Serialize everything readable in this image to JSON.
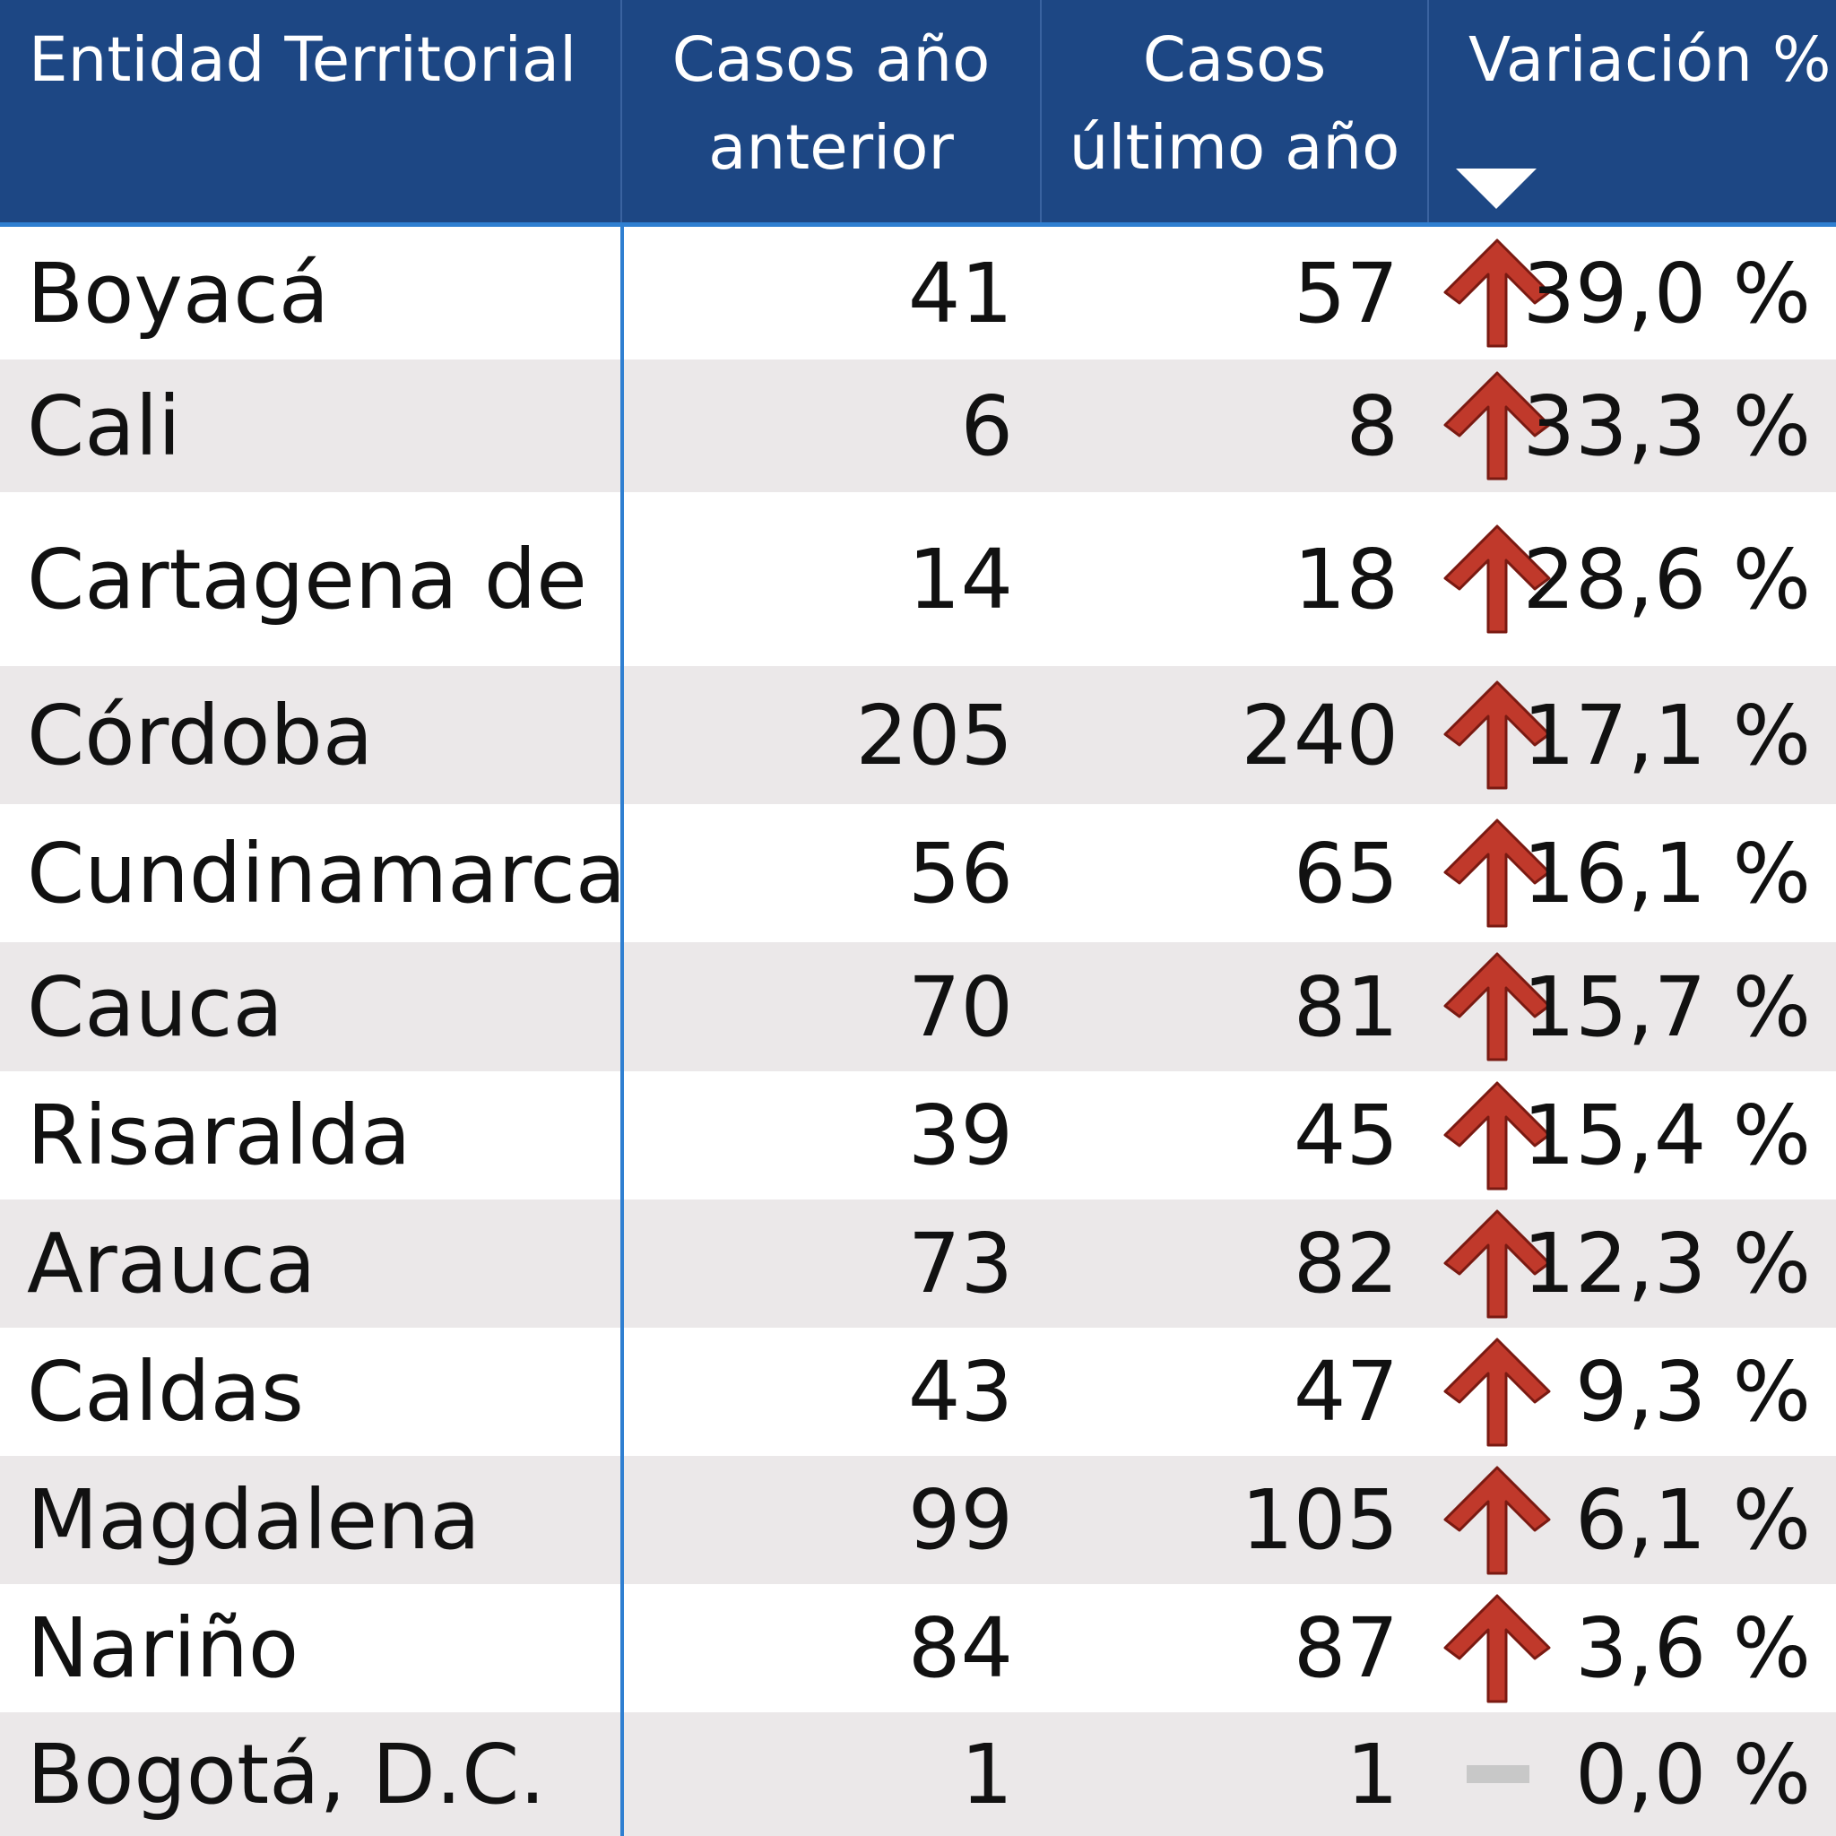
{
  "table": {
    "headers": {
      "entity": "Entidad Territorial",
      "prev_line1": "Casos año",
      "prev_line2": "anterior",
      "last_line1": "Casos",
      "last_line2": "último año",
      "variation": "Variación %"
    },
    "sort": {
      "column": "variation",
      "direction": "descending",
      "icon": "sort-descending-icon"
    },
    "colors": {
      "header_bg": "#1d4784",
      "accent_line": "#2f7fd1",
      "row_alt_bg": "#ebe8e9",
      "arrow_up": "#c0392b",
      "neutral_dash": "#c8c8c8"
    },
    "rows": [
      {
        "entity": "Boyacá",
        "prev": "41",
        "last": "57",
        "variation": "39,0 %",
        "trend": "up"
      },
      {
        "entity": "Cali",
        "prev": "6",
        "last": "8",
        "variation": "33,3 %",
        "trend": "up"
      },
      {
        "entity": "Cartagena de",
        "prev": "14",
        "last": "18",
        "variation": "28,6 %",
        "trend": "up"
      },
      {
        "entity": "Córdoba",
        "prev": "205",
        "last": "240",
        "variation": "17,1 %",
        "trend": "up"
      },
      {
        "entity": "Cundinamarca",
        "prev": "56",
        "last": "65",
        "variation": "16,1 %",
        "trend": "up"
      },
      {
        "entity": "Cauca",
        "prev": "70",
        "last": "81",
        "variation": "15,7 %",
        "trend": "up"
      },
      {
        "entity": "Risaralda",
        "prev": "39",
        "last": "45",
        "variation": "15,4 %",
        "trend": "up"
      },
      {
        "entity": "Arauca",
        "prev": "73",
        "last": "82",
        "variation": "12,3 %",
        "trend": "up"
      },
      {
        "entity": "Caldas",
        "prev": "43",
        "last": "47",
        "variation": "9,3 %",
        "trend": "up"
      },
      {
        "entity": "Magdalena",
        "prev": "99",
        "last": "105",
        "variation": "6,1 %",
        "trend": "up"
      },
      {
        "entity": "Nariño",
        "prev": "84",
        "last": "87",
        "variation": "3,6 %",
        "trend": "up"
      },
      {
        "entity": "Bogotá, D.C.",
        "prev": "1",
        "last": "1",
        "variation": "0,0 %",
        "trend": "flat"
      }
    ]
  }
}
